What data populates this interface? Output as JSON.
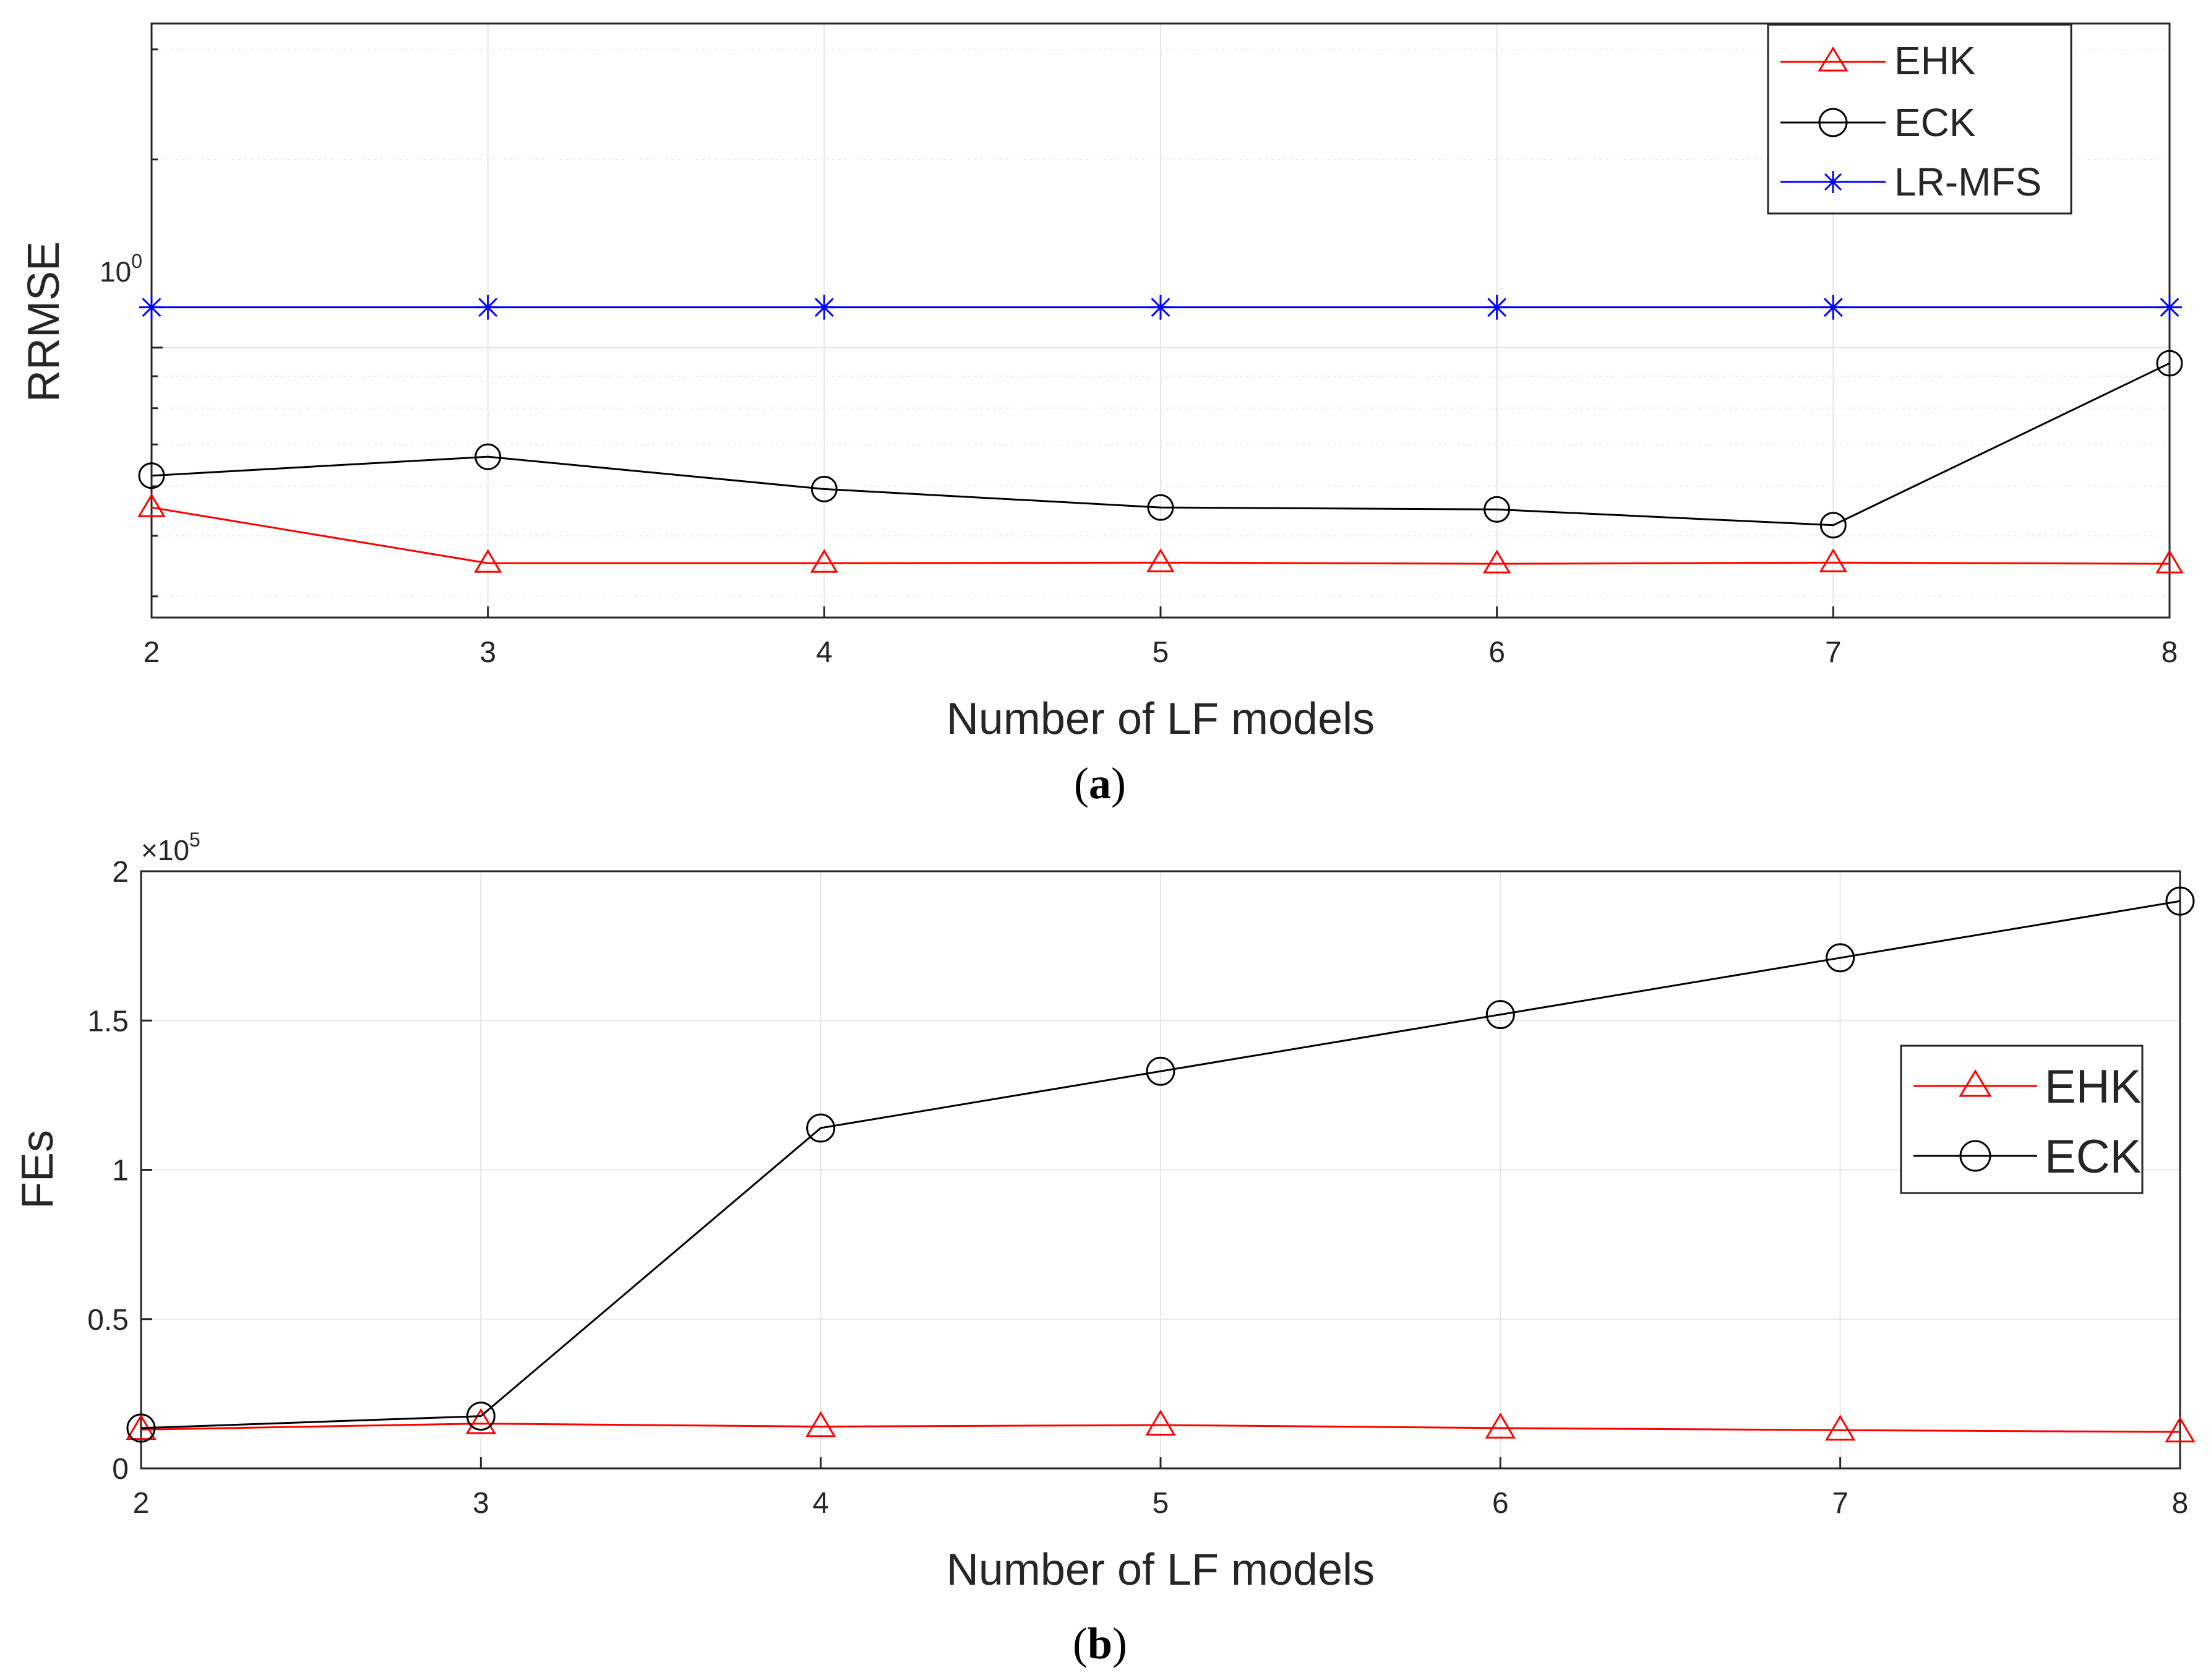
{
  "chart_data": [
    {
      "id": "a",
      "type": "line",
      "yscale": "log",
      "caption_open": "(",
      "caption_letter": "a",
      "caption_close": ")",
      "xlabel": "Number of LF models",
      "ylabel": "RRMSE",
      "xlim": [
        2,
        8
      ],
      "ylim": [
        0.37,
        3.3
      ],
      "categories": [
        2,
        3,
        4,
        5,
        6,
        7,
        8
      ],
      "y_tick_label_base": "10",
      "y_tick_label_exp": "0",
      "y_tick_value": 1,
      "grid": true,
      "legend_position": "top-right",
      "series": [
        {
          "name": "EHK",
          "color": "#ff0000",
          "marker": "triangle",
          "values": [
            0.555,
            0.452,
            0.452,
            0.453,
            0.451,
            0.453,
            0.451
          ]
        },
        {
          "name": "ECK",
          "color": "#000000",
          "marker": "circle",
          "values": [
            0.624,
            0.669,
            0.594,
            0.555,
            0.551,
            0.52,
            0.944
          ]
        },
        {
          "name": "LR-MFS",
          "color": "#0000ff",
          "marker": "asterisk",
          "values": [
            1.16,
            1.16,
            1.16,
            1.16,
            1.16,
            1.16,
            1.16
          ]
        }
      ]
    },
    {
      "id": "b",
      "type": "line",
      "caption_open": "(",
      "caption_letter": "b",
      "caption_close": ")",
      "xlabel": "Number of LF models",
      "ylabel": "FEs",
      "xlim": [
        2,
        8
      ],
      "ylim": [
        0,
        200000
      ],
      "categories": [
        2,
        3,
        4,
        5,
        6,
        7,
        8
      ],
      "y_ticks": [
        0,
        50000,
        100000,
        150000,
        200000
      ],
      "y_tick_labels": [
        "0",
        "0.5",
        "1",
        "1.5",
        "2"
      ],
      "exponent_prefix": "×10",
      "exponent_power": "5",
      "grid": true,
      "legend_position": "center-right",
      "series": [
        {
          "name": "EHK",
          "color": "#ff0000",
          "marker": "triangle",
          "values": [
            13000,
            15000,
            14000,
            14500,
            13500,
            12800,
            12200
          ]
        },
        {
          "name": "ECK",
          "color": "#000000",
          "marker": "circle",
          "values": [
            13500,
            17500,
            114000,
            133000,
            152000,
            171000,
            190000
          ]
        }
      ]
    }
  ]
}
